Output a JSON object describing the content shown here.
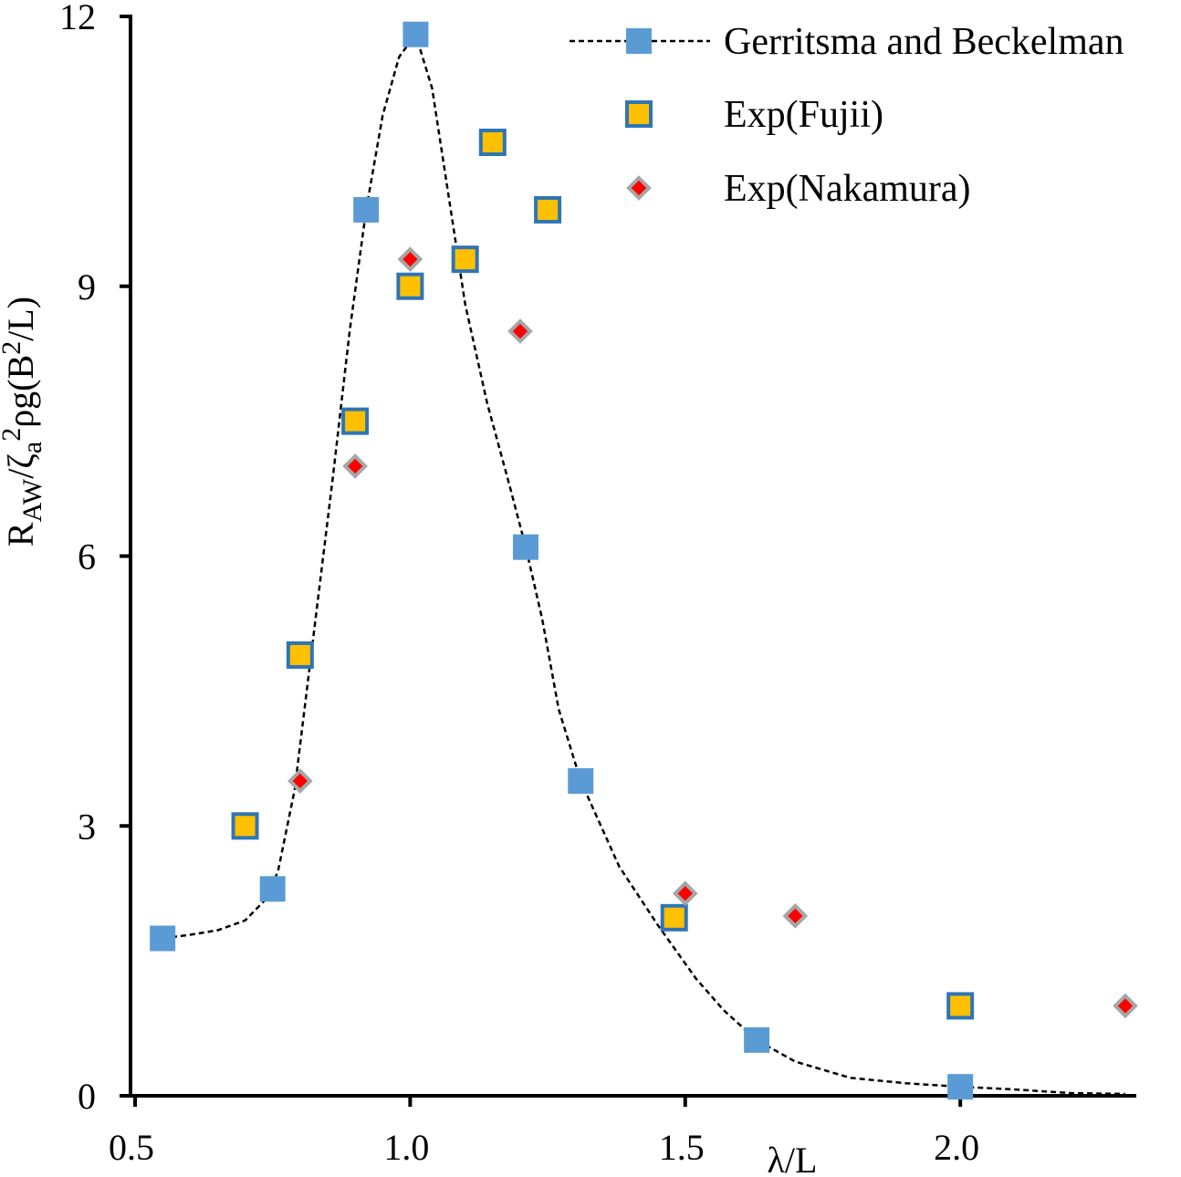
{
  "chart_data": {
    "type": "scatter",
    "title": "",
    "xlabel": "λ/L",
    "ylabel": {
      "parts": [
        {
          "text": "R",
          "style": "normal"
        },
        {
          "text": "AW",
          "style": "sub"
        },
        {
          "text": "/ζ",
          "style": "normal"
        },
        {
          "text": "a",
          "style": "sub"
        },
        {
          "text": "2",
          "style": "sup"
        },
        {
          "text": "ρg(B",
          "style": "normal"
        },
        {
          "text": "2",
          "style": "sup"
        },
        {
          "text": "/L)",
          "style": "normal"
        }
      ]
    },
    "xlim": [
      0.5,
      2.3
    ],
    "ylim": [
      0,
      12
    ],
    "x_ticks": [
      {
        "value": 0.5,
        "label": "0.5"
      },
      {
        "value": 1.0,
        "label": "1.0"
      },
      {
        "value": 1.5,
        "label": "1.5"
      },
      {
        "value": 2.0,
        "label": "2.0"
      }
    ],
    "y_ticks": [
      {
        "value": 0,
        "label": "0"
      },
      {
        "value": 3,
        "label": "3"
      },
      {
        "value": 6,
        "label": "6"
      },
      {
        "value": 9,
        "label": "9"
      },
      {
        "value": 12,
        "label": "12"
      }
    ],
    "grid": false,
    "legend_position": "top-right",
    "series": [
      {
        "name": "Gerritsma and Beckelman",
        "marker": "square",
        "line": "dashed",
        "color": "#5b9bd5",
        "points": [
          [
            0.55,
            1.75
          ],
          [
            0.75,
            2.3
          ],
          [
            0.92,
            9.85
          ],
          [
            1.01,
            11.8
          ],
          [
            1.21,
            6.1
          ],
          [
            1.31,
            3.5
          ],
          [
            1.63,
            0.62
          ],
          [
            2.0,
            0.1
          ]
        ],
        "curve": [
          [
            0.55,
            1.75
          ],
          [
            0.6,
            1.79
          ],
          [
            0.65,
            1.84
          ],
          [
            0.7,
            1.95
          ],
          [
            0.74,
            2.2
          ],
          [
            0.76,
            2.5
          ],
          [
            0.79,
            3.4
          ],
          [
            0.82,
            4.9
          ],
          [
            0.86,
            6.9
          ],
          [
            0.89,
            8.5
          ],
          [
            0.92,
            9.85
          ],
          [
            0.95,
            10.9
          ],
          [
            0.98,
            11.55
          ],
          [
            1.01,
            11.8
          ],
          [
            1.04,
            11.2
          ],
          [
            1.07,
            10.0
          ],
          [
            1.1,
            8.8
          ],
          [
            1.14,
            7.7
          ],
          [
            1.18,
            6.8
          ],
          [
            1.21,
            6.1
          ],
          [
            1.24,
            5.3
          ],
          [
            1.27,
            4.3
          ],
          [
            1.31,
            3.5
          ],
          [
            1.38,
            2.55
          ],
          [
            1.45,
            1.9
          ],
          [
            1.52,
            1.3
          ],
          [
            1.57,
            0.95
          ],
          [
            1.63,
            0.62
          ],
          [
            1.7,
            0.38
          ],
          [
            1.8,
            0.2
          ],
          [
            1.9,
            0.14
          ],
          [
            2.0,
            0.1
          ],
          [
            2.1,
            0.07
          ],
          [
            2.2,
            0.03
          ],
          [
            2.3,
            0.02
          ]
        ]
      },
      {
        "name": "Exp(Fujii)",
        "marker": "square-outlined",
        "line": "none",
        "color": "#ffc000",
        "edge_color": "#2e75b6",
        "points": [
          [
            0.7,
            3.0
          ],
          [
            0.8,
            4.9
          ],
          [
            0.9,
            7.5
          ],
          [
            1.0,
            9.0
          ],
          [
            1.1,
            9.3
          ],
          [
            1.15,
            10.6
          ],
          [
            1.25,
            9.85
          ],
          [
            1.48,
            1.98
          ],
          [
            2.0,
            1.0
          ]
        ]
      },
      {
        "name": "Exp(Nakamura)",
        "marker": "diamond",
        "line": "none",
        "color": "#ff0000",
        "edge_color": "#a6a6a6",
        "points": [
          [
            0.8,
            3.5
          ],
          [
            0.9,
            7.0
          ],
          [
            1.0,
            9.3
          ],
          [
            1.2,
            8.5
          ],
          [
            1.5,
            2.25
          ],
          [
            1.7,
            2.0
          ],
          [
            2.3,
            1.0
          ]
        ]
      }
    ]
  }
}
